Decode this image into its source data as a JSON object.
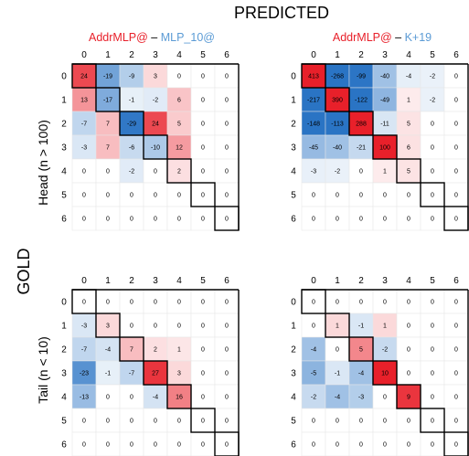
{
  "figure": {
    "top_label": "PREDICTED",
    "left_label": "GOLD",
    "row_labels": [
      "Head (n > 100)",
      "Tail (n < 10)"
    ],
    "columns": [
      {
        "title_red": "AddrMLP@",
        "title_dash": " – ",
        "title_blue": "MLP_10@"
      },
      {
        "title_red": "AddrMLP@",
        "title_dash": " – ",
        "title_blue": "K+19"
      }
    ],
    "colors": {
      "positive": "#e8202a",
      "negative": "#2a74c4",
      "title_red": "#e8202a",
      "title_blue": "#5b9bd5",
      "text": "#000000"
    }
  },
  "chart_data": [
    {
      "type": "heatmap",
      "row": "Head (n > 100)",
      "column_title": "AddrMLP@ – MLP_10@",
      "x_ticks": [
        "0",
        "1",
        "2",
        "3",
        "4",
        "5",
        "6"
      ],
      "y_ticks": [
        "0",
        "1",
        "2",
        "3",
        "4",
        "5",
        "6"
      ],
      "values": [
        [
          24,
          -19,
          -9,
          3,
          0,
          0,
          0
        ],
        [
          13,
          -17,
          -1,
          -2,
          6,
          0,
          0
        ],
        [
          -7,
          7,
          -29,
          24,
          5,
          0,
          0
        ],
        [
          -3,
          7,
          -6,
          -10,
          12,
          0,
          0
        ],
        [
          0,
          0,
          -2,
          0,
          2,
          0,
          0
        ],
        [
          0,
          0,
          0,
          0,
          0,
          0,
          0
        ],
        [
          0,
          0,
          0,
          0,
          0,
          0,
          0
        ]
      ],
      "color_max": 30
    },
    {
      "type": "heatmap",
      "row": "Head (n > 100)",
      "column_title": "AddrMLP@ – K+19",
      "x_ticks": [
        "0",
        "1",
        "2",
        "3",
        "4",
        "5",
        "6"
      ],
      "y_ticks": [
        "0",
        "1",
        "2",
        "3",
        "4",
        "5",
        "6"
      ],
      "values": [
        [
          413,
          -268,
          -99,
          -40,
          -4,
          -2,
          0
        ],
        [
          -217,
          390,
          -122,
          -49,
          1,
          -2,
          0
        ],
        [
          -148,
          -113,
          288,
          -11,
          5,
          0,
          0
        ],
        [
          -45,
          -40,
          -21,
          100,
          6,
          0,
          0
        ],
        [
          -3,
          -2,
          0,
          1,
          5,
          0,
          0
        ],
        [
          0,
          0,
          0,
          0,
          0,
          0,
          0
        ],
        [
          0,
          0,
          0,
          0,
          0,
          0,
          0
        ]
      ],
      "color_max": 100
    },
    {
      "type": "heatmap",
      "row": "Tail (n < 10)",
      "column_title": "AddrMLP@ – MLP_10@",
      "x_ticks": [
        "0",
        "1",
        "2",
        "3",
        "4",
        "5",
        "6"
      ],
      "y_ticks": [
        "0",
        "1",
        "2",
        "3",
        "4",
        "5",
        "6"
      ],
      "values": [
        [
          0,
          0,
          0,
          0,
          0,
          0,
          0
        ],
        [
          -3,
          3,
          0,
          0,
          0,
          0,
          0
        ],
        [
          -7,
          -4,
          7,
          2,
          1,
          0,
          0
        ],
        [
          -23,
          -1,
          -7,
          27,
          3,
          0,
          0
        ],
        [
          -13,
          0,
          0,
          -4,
          16,
          0,
          0
        ],
        [
          0,
          0,
          0,
          0,
          0,
          0,
          0
        ],
        [
          0,
          0,
          0,
          0,
          0,
          0,
          0
        ]
      ],
      "color_max": 30
    },
    {
      "type": "heatmap",
      "row": "Tail (n < 10)",
      "column_title": "AddrMLP@ – K+19",
      "x_ticks": [
        "0",
        "1",
        "2",
        "3",
        "4",
        "5",
        "6"
      ],
      "y_ticks": [
        "0",
        "1",
        "2",
        "3",
        "4",
        "5",
        "6"
      ],
      "values": [
        [
          0,
          0,
          0,
          0,
          0,
          0,
          0
        ],
        [
          0,
          1,
          -1,
          1,
          0,
          0,
          0
        ],
        [
          -4,
          0,
          5,
          -2,
          0,
          0,
          0
        ],
        [
          -5,
          -1,
          -4,
          10,
          0,
          0,
          0
        ],
        [
          -2,
          -4,
          -3,
          0,
          9,
          0,
          0
        ],
        [
          0,
          0,
          0,
          0,
          0,
          0,
          0
        ],
        [
          0,
          0,
          0,
          0,
          0,
          0,
          0
        ]
      ],
      "color_max": 10
    }
  ]
}
